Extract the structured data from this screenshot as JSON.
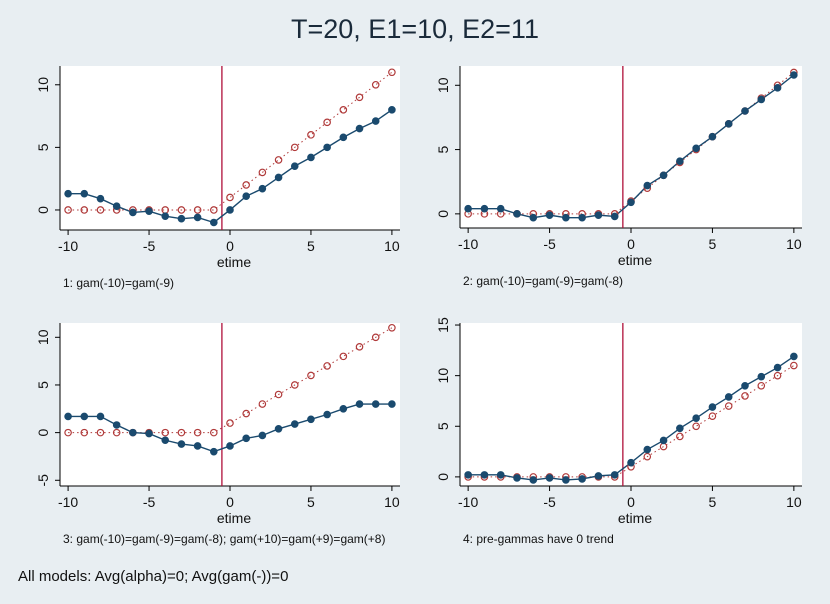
{
  "figure": {
    "title": "T=20, E1=10, E2=11",
    "footnote": "All models: Avg(alpha)=0; Avg(gam(-))=0"
  },
  "colors": {
    "background": "#e8eef2",
    "estimate_line": "#1a4a6e",
    "truth_marker": "#b03a3a",
    "event_line": "#b0103a"
  },
  "chart_data": [
    {
      "type": "line",
      "title": "",
      "caption": "1: gam(-10)=gam(-9)",
      "xlabel": "etime",
      "ylabel": "",
      "xlim": [
        -10.5,
        10.5
      ],
      "ylim": [
        -1.6,
        11.5
      ],
      "xticks": [
        -10,
        -5,
        0,
        5,
        10
      ],
      "yticks": [
        0,
        5,
        10
      ],
      "event_line_x": -0.5,
      "x": [
        -10,
        -9,
        -8,
        -7,
        -6,
        -5,
        -4,
        -3,
        -2,
        -1,
        0,
        1,
        2,
        3,
        4,
        5,
        6,
        7,
        8,
        9,
        10
      ],
      "series": [
        {
          "values": [
            1.3,
            1.3,
            0.9,
            0.3,
            -0.2,
            -0.1,
            -0.5,
            -0.7,
            -0.6,
            -1.0,
            0.0,
            1.1,
            1.7,
            2.6,
            3.5,
            4.2,
            5.0,
            5.8,
            6.5,
            7.1,
            8.0
          ]
        },
        {
          "values": [
            0,
            0,
            0,
            0,
            0,
            0,
            0,
            0,
            0,
            0,
            1,
            2,
            3,
            4,
            5,
            6,
            7,
            8,
            9,
            10,
            11
          ]
        }
      ]
    },
    {
      "type": "line",
      "title": "",
      "caption": "2: gam(-10)=gam(-9)=gam(-8)",
      "xlabel": "etime",
      "ylabel": "",
      "xlim": [
        -10.5,
        10.5
      ],
      "ylim": [
        -1.1,
        11.5
      ],
      "xticks": [
        -10,
        -5,
        0,
        5,
        10
      ],
      "yticks": [
        0,
        5,
        10
      ],
      "event_line_x": -0.5,
      "x": [
        -10,
        -9,
        -8,
        -7,
        -6,
        -5,
        -4,
        -3,
        -2,
        -1,
        0,
        1,
        2,
        3,
        4,
        5,
        6,
        7,
        8,
        9,
        10
      ],
      "series": [
        {
          "values": [
            0.4,
            0.4,
            0.4,
            0.0,
            -0.3,
            -0.1,
            -0.3,
            -0.3,
            -0.1,
            -0.2,
            0.9,
            2.2,
            3.0,
            4.1,
            5.1,
            6.0,
            7.0,
            8.0,
            8.9,
            9.8,
            10.8
          ]
        },
        {
          "values": [
            0,
            0,
            0,
            0,
            0,
            0,
            0,
            0,
            0,
            0,
            1,
            2,
            3,
            4,
            5,
            6,
            7,
            8,
            9,
            10,
            11
          ]
        }
      ]
    },
    {
      "type": "line",
      "title": "",
      "caption": "3: gam(-10)=gam(-9)=gam(-8); gam(+10)=gam(+9)=gam(+8)",
      "xlabel": "etime",
      "ylabel": "",
      "xlim": [
        -10.5,
        10.5
      ],
      "ylim": [
        -5.6,
        11.5
      ],
      "xticks": [
        -10,
        -5,
        0,
        5,
        10
      ],
      "yticks": [
        -5,
        0,
        5,
        10
      ],
      "event_line_x": -0.5,
      "x": [
        -10,
        -9,
        -8,
        -7,
        -6,
        -5,
        -4,
        -3,
        -2,
        -1,
        0,
        1,
        2,
        3,
        4,
        5,
        6,
        7,
        8,
        9,
        10
      ],
      "series": [
        {
          "values": [
            1.7,
            1.7,
            1.7,
            0.8,
            0.0,
            -0.1,
            -0.8,
            -1.2,
            -1.4,
            -2.0,
            -1.4,
            -0.6,
            -0.3,
            0.4,
            0.9,
            1.4,
            1.9,
            2.5,
            3.0,
            3.0,
            3.0
          ]
        },
        {
          "values": [
            0,
            0,
            0,
            0,
            0,
            0,
            0,
            0,
            0,
            0,
            1,
            2,
            3,
            4,
            5,
            6,
            7,
            8,
            9,
            10,
            11
          ]
        }
      ]
    },
    {
      "type": "line",
      "title": "",
      "caption": "4: pre-gammas have 0 trend",
      "xlabel": "etime",
      "ylabel": "",
      "xlim": [
        -10.5,
        10.5
      ],
      "ylim": [
        -0.9,
        15.2
      ],
      "xticks": [
        -10,
        -5,
        0,
        5,
        10
      ],
      "yticks": [
        0,
        5,
        10,
        15
      ],
      "event_line_x": -0.5,
      "x": [
        -10,
        -9,
        -8,
        -7,
        -6,
        -5,
        -4,
        -3,
        -2,
        -1,
        0,
        1,
        2,
        3,
        4,
        5,
        6,
        7,
        8,
        9,
        10
      ],
      "series": [
        {
          "values": [
            0.2,
            0.2,
            0.2,
            -0.1,
            -0.3,
            -0.1,
            -0.3,
            -0.2,
            0.1,
            0.2,
            1.4,
            2.7,
            3.6,
            4.8,
            5.8,
            6.9,
            7.9,
            9.0,
            9.9,
            10.8,
            11.9
          ]
        },
        {
          "values": [
            0,
            0,
            0,
            0,
            0,
            0,
            0,
            0,
            0,
            0,
            1,
            2,
            3,
            4,
            5,
            6,
            7,
            8,
            9,
            10,
            11
          ]
        }
      ]
    }
  ]
}
